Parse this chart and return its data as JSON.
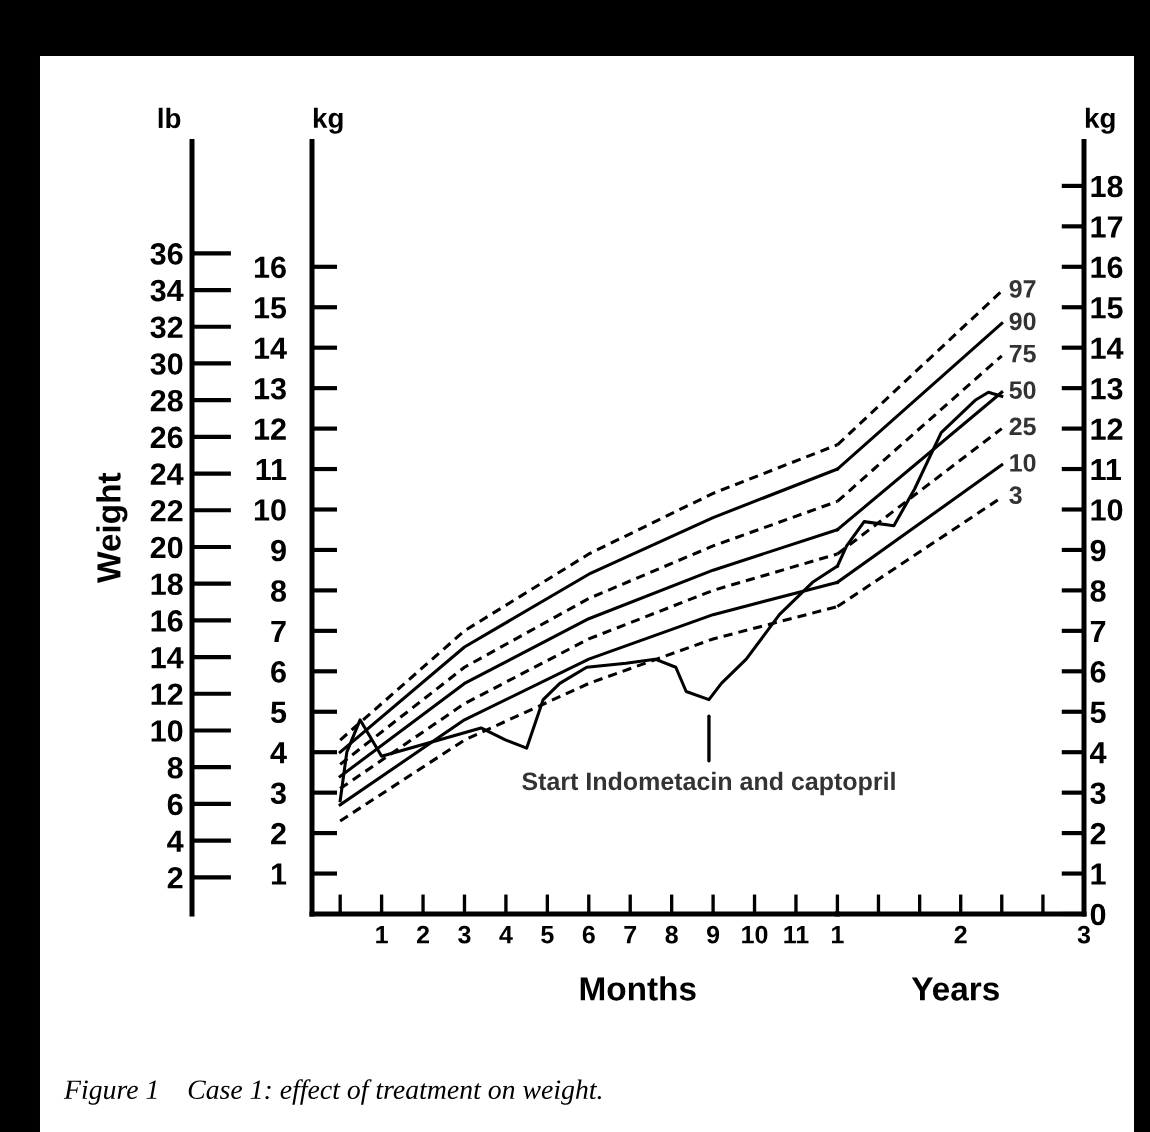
{
  "chart_data": [
    {
      "type": "line",
      "ylabel": "Weight",
      "xlabel": "Months",
      "y3label": "lb",
      "x": [
        0,
        3,
        6,
        9,
        12
      ],
      "series": [
        {
          "color": "#000000",
          "line_style": "dashed",
          "values": [
            4.3,
            7.0,
            8.9,
            10.4,
            11.6
          ]
        },
        {
          "color": "#000000",
          "line_style": "solid",
          "values": [
            4.0,
            6.6,
            8.4,
            9.8,
            11.0
          ]
        },
        {
          "color": "#000000",
          "line_style": "dashed",
          "values": [
            3.7,
            6.1,
            7.8,
            9.1,
            10.2
          ]
        },
        {
          "color": "#000000",
          "line_style": "solid",
          "values": [
            3.4,
            5.7,
            7.3,
            8.5,
            9.5
          ]
        },
        {
          "color": "#000000",
          "line_style": "dashed",
          "values": [
            3.1,
            5.2,
            6.8,
            8.0,
            8.9
          ]
        },
        {
          "color": "#000000",
          "line_style": "solid",
          "values": [
            2.7,
            4.8,
            6.3,
            7.4,
            8.2
          ]
        },
        {
          "color": "#000000",
          "line_style": "dashed",
          "values": [
            2.3,
            4.3,
            5.7,
            6.8,
            7.6
          ]
        },
        {
          "color": "#000000",
          "line_style": "solid",
          "x": [
            0,
            0.16,
            0.48,
            1,
            3.4,
            4.0,
            4.5,
            4.9,
            5.3,
            5.95,
            6.9,
            7.6,
            8.1,
            8.35,
            8.9,
            9.2,
            9.8,
            10.6,
            11.4,
            12
          ],
          "values": [
            2.8,
            4.0,
            4.8,
            3.9,
            4.6,
            4.3,
            4.1,
            5.3,
            5.7,
            6.1,
            6.2,
            6.3,
            6.1,
            5.5,
            5.3,
            5.7,
            6.3,
            7.4,
            8.2,
            8.6
          ]
        }
      ],
      "xlim": [
        -0.68,
        12
      ],
      "xticks": [
        {
          "value": 0,
          "label": null
        },
        1,
        2,
        3,
        4,
        5,
        6,
        7,
        8,
        9,
        10,
        11
      ],
      "ylim": [
        0,
        19.1
      ],
      "yticks": [
        1,
        2,
        3,
        4,
        5,
        6,
        7,
        8,
        9,
        10,
        11,
        12,
        13,
        14,
        15,
        16
      ],
      "y3lim": [
        0,
        42.1
      ],
      "y3ticks": [
        2,
        4,
        6,
        8,
        10,
        12,
        14,
        16,
        18,
        20,
        22,
        24,
        26,
        28,
        30,
        32,
        34,
        36
      ],
      "grid": false,
      "marker": "none",
      "annotations": [
        {
          "text": "Start Indometacin and captopril",
          "x": 8.9,
          "y": 5.3
        },
        "kg",
        "Figure 1    Case 1: effect of treatment on weight."
      ]
    },
    {
      "type": "line",
      "xlabel": "Years",
      "ylabel": "kg",
      "x": [
        1,
        2.333
      ],
      "series": [
        {
          "name": "97",
          "color": "#000000",
          "line_style": "dashed",
          "values": [
            11.6,
            15.4
          ]
        },
        {
          "name": "90",
          "color": "#000000",
          "line_style": "solid",
          "values": [
            11.0,
            14.6
          ]
        },
        {
          "name": "75",
          "color": "#000000",
          "line_style": "dashed",
          "values": [
            10.2,
            13.8
          ]
        },
        {
          "name": "50",
          "color": "#000000",
          "line_style": "solid",
          "values": [
            9.5,
            12.9
          ]
        },
        {
          "name": "25",
          "color": "#000000",
          "line_style": "dashed",
          "values": [
            8.9,
            12.0
          ]
        },
        {
          "name": "10",
          "color": "#000000",
          "line_style": "solid",
          "values": [
            8.2,
            11.1
          ]
        },
        {
          "name": "3",
          "color": "#000000",
          "line_style": "dashed",
          "values": [
            7.6,
            10.3
          ]
        },
        {
          "color": "#000000",
          "line_style": "solid",
          "x": [
            1,
            1.075,
            1.217,
            1.458,
            1.625,
            1.842,
            2.117,
            2.225,
            2.333
          ],
          "values": [
            8.6,
            9.1,
            9.7,
            9.6,
            10.5,
            11.9,
            12.7,
            12.9,
            12.8
          ]
        }
      ],
      "xlim": [
        1,
        3
      ],
      "xticks": [
        1,
        {
          "value": 1.333,
          "label": null
        },
        {
          "value": 1.667,
          "label": null
        },
        2,
        {
          "value": 2.333,
          "label": null
        },
        {
          "value": 2.667,
          "label": null
        },
        3
      ],
      "ylim": [
        0,
        19.1
      ],
      "yticks": [
        0,
        1,
        2,
        3,
        4,
        5,
        6,
        7,
        8,
        9,
        10,
        11,
        12,
        13,
        14,
        15,
        16,
        17,
        18
      ],
      "grid": false,
      "marker": "none"
    }
  ]
}
